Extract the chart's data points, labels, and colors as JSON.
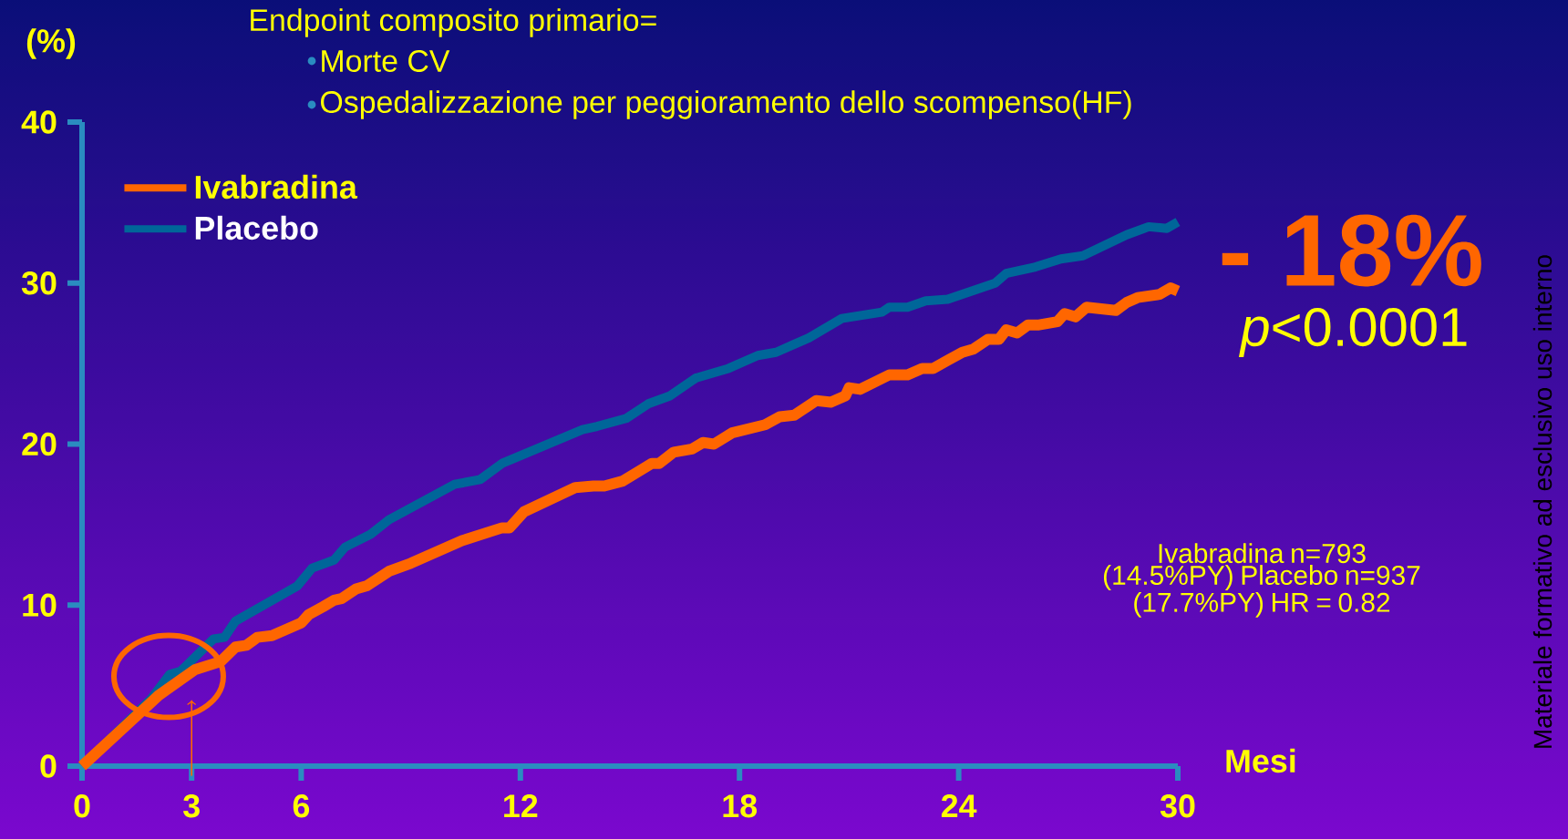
{
  "chart_data": {
    "type": "line",
    "title": "Endpoint composito primario=",
    "xlabel": "Mesi",
    "ylabel": "(%)",
    "annotations": [
      "Morte CV",
      "Ospedalizzazione per peggioramento dello scompenso(HF)",
      "- 18%",
      "*p*<0.0001",
      "Ivabradina n=793 (14.5%PY) Placebo n=937 (17.7%PY) HR = 0.82",
      "Materiale formativo ad esclusivo uso interno"
    ],
    "series": [
      {
        "name": "Ivabradina",
        "color": "#ff6600",
        "x": [
          0,
          2.1,
          3.1,
          3.8,
          4.2,
          4.5,
          4.8,
          5.2,
          6.0,
          6.2,
          6.6,
          6.9,
          7.1,
          7.5,
          7.8,
          8.4,
          9.0,
          10.4,
          11.5,
          11.7,
          12.1,
          13.5,
          14.0,
          14.3,
          14.8,
          15.6,
          15.8,
          16.2,
          16.7,
          17.0,
          17.3,
          17.8,
          18.7,
          19.1,
          19.5,
          20.1,
          20.5,
          20.9,
          21.0,
          21.3,
          22.1,
          22.6,
          23.0,
          23.3,
          23.7,
          24.1,
          24.4,
          24.8,
          25.1,
          25.3,
          25.6,
          25.9,
          26.2,
          26.7,
          26.9,
          27.2,
          27.5,
          28.3,
          28.6,
          28.9,
          29.5,
          29.8,
          30
        ],
        "values": [
          0,
          4.4,
          6.0,
          6.5,
          7.4,
          7.5,
          8.0,
          8.1,
          8.9,
          9.4,
          9.9,
          10.3,
          10.4,
          11.0,
          11.2,
          12.1,
          12.6,
          14.0,
          14.8,
          14.8,
          15.8,
          17.3,
          17.4,
          17.4,
          17.7,
          18.8,
          18.8,
          19.5,
          19.7,
          20.1,
          20.0,
          20.7,
          21.2,
          21.7,
          21.8,
          22.7,
          22.6,
          23.0,
          23.5,
          23.4,
          24.3,
          24.3,
          24.7,
          24.7,
          25.2,
          25.7,
          25.9,
          26.5,
          26.5,
          27.1,
          26.9,
          27.4,
          27.4,
          27.6,
          28.1,
          27.9,
          28.5,
          28.3,
          28.8,
          29.1,
          29.3,
          29.7,
          29.5
        ]
      },
      {
        "name": "Placebo",
        "color": "#006699",
        "x": [
          0,
          1.9,
          2.4,
          2.7,
          3.6,
          3.9,
          4.2,
          5.9,
          6.3,
          6.9,
          7.2,
          7.9,
          8.4,
          10.2,
          10.9,
          11.5,
          13.7,
          14.1,
          14.9,
          15.5,
          16.1,
          16.8,
          17.7,
          18.5,
          19.0,
          19.5,
          19.9,
          20.8,
          21.9,
          22.1,
          22.6,
          23.1,
          23.7,
          25.0,
          25.3,
          26.1,
          26.8,
          27.4,
          28.6,
          29.2,
          29.7,
          30
        ],
        "values": [
          0,
          4.2,
          5.7,
          5.9,
          7.9,
          8.0,
          9.0,
          11.2,
          12.3,
          12.8,
          13.6,
          14.4,
          15.3,
          17.5,
          17.8,
          18.8,
          20.9,
          21.1,
          21.6,
          22.5,
          23.0,
          24.1,
          24.7,
          25.5,
          25.7,
          26.2,
          26.6,
          27.8,
          28.2,
          28.5,
          28.5,
          28.9,
          29.0,
          30.0,
          30.6,
          31.0,
          31.5,
          31.7,
          33.0,
          33.5,
          33.4,
          33.8
        ]
      }
    ],
    "xlim": [
      0,
      30
    ],
    "ylim": [
      0,
      40
    ],
    "xticks": [
      0,
      3,
      6,
      12,
      18,
      24,
      30
    ],
    "yticks": [
      0,
      10,
      20,
      30,
      40
    ],
    "legend": "top left"
  }
}
